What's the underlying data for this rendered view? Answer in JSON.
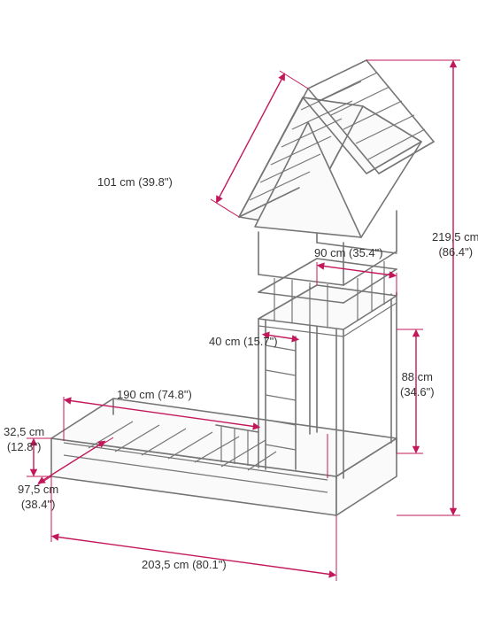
{
  "diagram": {
    "type": "technical-drawing",
    "subject": "house-bed-frame",
    "background_color": "#ffffff",
    "line_color": "#757575",
    "dimension_color": "#c2185b",
    "text_color": "#333333",
    "label_fontsize": 13,
    "dimensions": {
      "total_height": "219,5 cm (86.4\")",
      "total_length": "203,5 cm (80.1\")",
      "total_width": "97,5 cm (38.4\")",
      "bed_height": "32,5 cm (12.8\")",
      "tower_height": "88 cm (34.6\")",
      "tower_width": "90 cm (35.4\")",
      "tower_railing": "40 cm (15.7\")",
      "roof_width": "101 cm (39.8\")",
      "inner_length": "190 cm (74.8\")"
    }
  }
}
